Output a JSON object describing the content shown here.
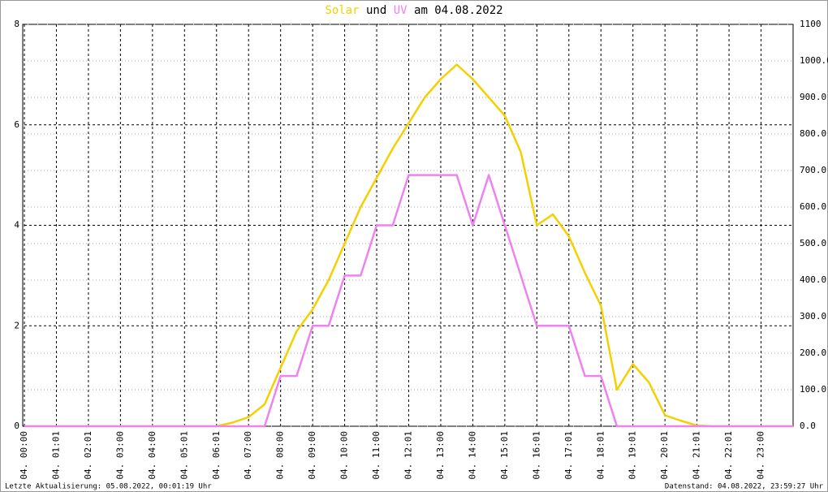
{
  "chart_data": {
    "type": "line",
    "title_end": "am 04.08.2022",
    "title_middle": "und",
    "footer_left": "Letzte Aktualisierung: 05.08.2022, 00:01:19 Uhr",
    "footer_right": "Datenstand: 04.08.2022, 23:59:27 Uhr",
    "x": [
      0,
      0.5,
      1,
      1.5,
      2,
      2.5,
      3,
      3.5,
      4,
      4.5,
      5,
      5.5,
      6,
      6.5,
      7,
      7.5,
      8,
      8.5,
      9,
      9.5,
      10,
      10.5,
      11,
      11.5,
      12,
      12.5,
      13,
      13.5,
      14,
      14.5,
      15,
      15.5,
      16,
      16.5,
      17,
      17.5,
      18,
      18.5,
      19,
      19.5,
      20,
      20.5,
      21,
      21.5,
      22,
      22.5,
      23,
      23.5,
      24
    ],
    "xlim": [
      0,
      24
    ],
    "xticks": [
      {
        "value": 0,
        "label": "04. 00:00"
      },
      {
        "value": 1,
        "label": "04. 01:01"
      },
      {
        "value": 2,
        "label": "04. 02:01"
      },
      {
        "value": 3,
        "label": "04. 03:00"
      },
      {
        "value": 4,
        "label": "04. 04:00"
      },
      {
        "value": 5,
        "label": "04. 05:01"
      },
      {
        "value": 6,
        "label": "04. 06:01"
      },
      {
        "value": 7,
        "label": "04. 07:00"
      },
      {
        "value": 8,
        "label": "04. 08:00"
      },
      {
        "value": 9,
        "label": "04. 09:00"
      },
      {
        "value": 10,
        "label": "04. 10:00"
      },
      {
        "value": 11,
        "label": "04. 11:00"
      },
      {
        "value": 12,
        "label": "04. 12:01"
      },
      {
        "value": 13,
        "label": "04. 13:00"
      },
      {
        "value": 14,
        "label": "04. 14:00"
      },
      {
        "value": 15,
        "label": "04. 15:01"
      },
      {
        "value": 16,
        "label": "04. 16:01"
      },
      {
        "value": 17,
        "label": "04. 17:01"
      },
      {
        "value": 18,
        "label": "04. 18:01"
      },
      {
        "value": 19,
        "label": "04. 19:01"
      },
      {
        "value": 20,
        "label": "04. 20:01"
      },
      {
        "value": 21,
        "label": "04. 21:01"
      },
      {
        "value": 22,
        "label": "04. 22:01"
      },
      {
        "value": 23,
        "label": "04. 23:00"
      }
    ],
    "ylim": [
      0,
      8
    ],
    "yticks": [
      0,
      2,
      4,
      6,
      8
    ],
    "y2lim": [
      0,
      1100
    ],
    "y2ticks": [
      {
        "value": 0,
        "label": "0.0"
      },
      {
        "value": 100,
        "label": "100.0"
      },
      {
        "value": 200,
        "label": "200.0"
      },
      {
        "value": 300,
        "label": "300.0"
      },
      {
        "value": 400,
        "label": "400.0"
      },
      {
        "value": 500,
        "label": "500.0"
      },
      {
        "value": 600,
        "label": "600.0"
      },
      {
        "value": 700,
        "label": "700.0"
      },
      {
        "value": 800,
        "label": "800.0"
      },
      {
        "value": 900,
        "label": "900.0"
      },
      {
        "value": 1000,
        "label": "1000.0"
      },
      1100
    ],
    "grid": true,
    "series": [
      {
        "name": "Solar",
        "color": "#f5d000",
        "axis": "y2",
        "values": [
          0,
          0,
          0,
          0,
          0,
          0,
          0,
          0,
          0,
          0,
          0,
          0,
          0,
          10,
          25,
          60,
          160,
          260,
          320,
          400,
          500,
          600,
          680,
          760,
          830,
          900,
          950,
          990,
          950,
          900,
          850,
          750,
          550,
          580,
          520,
          420,
          330,
          100,
          170,
          120,
          30,
          15,
          2,
          0,
          0,
          0,
          0,
          0,
          0
        ]
      },
      {
        "name": "UV",
        "color": "#ee82ee",
        "values": [
          0,
          0,
          0,
          0,
          0,
          0,
          0,
          0,
          0,
          0,
          0,
          0,
          0,
          0,
          0,
          0,
          1,
          1,
          2,
          2,
          3,
          3,
          4,
          4,
          5,
          5,
          5,
          5,
          4,
          5,
          4,
          3,
          2,
          2,
          2,
          1,
          1,
          0,
          0,
          0,
          0,
          0,
          0,
          0,
          0,
          0,
          0,
          0,
          0
        ]
      }
    ]
  }
}
